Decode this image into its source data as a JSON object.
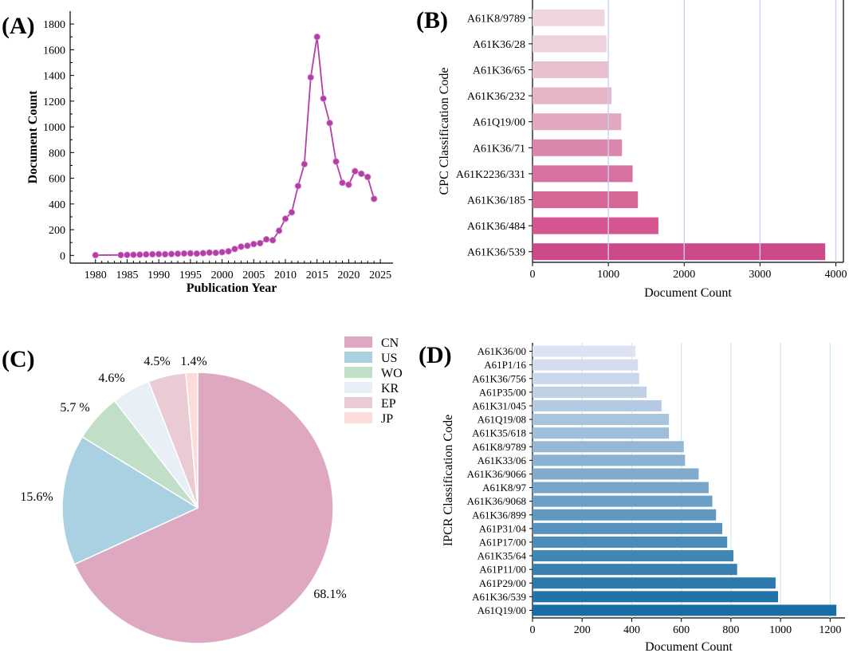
{
  "chart_data": [
    {
      "panel": "(A)",
      "type": "line",
      "xlabel": "Publication Year",
      "ylabel": "Document Count",
      "xlim": [
        1976,
        2027
      ],
      "ylim": [
        -60,
        1900
      ],
      "xticks": [
        1980,
        1985,
        1990,
        1995,
        2000,
        2005,
        2010,
        2015,
        2020,
        2025
      ],
      "yticks": [
        0,
        200,
        400,
        600,
        800,
        1000,
        1200,
        1400,
        1600,
        1800
      ],
      "color": "#b23fa5",
      "x": [
        1980,
        1984,
        1985,
        1986,
        1987,
        1988,
        1989,
        1990,
        1991,
        1992,
        1993,
        1994,
        1995,
        1996,
        1997,
        1998,
        1999,
        2000,
        2001,
        2002,
        2003,
        2004,
        2005,
        2006,
        2007,
        2008,
        2009,
        2010,
        2011,
        2012,
        2013,
        2014,
        2015,
        2016,
        2017,
        2018,
        2019,
        2020,
        2021,
        2022,
        2023,
        2024
      ],
      "y": [
        2,
        3,
        4,
        5,
        6,
        8,
        9,
        10,
        9,
        11,
        13,
        15,
        16,
        14,
        17,
        22,
        20,
        25,
        32,
        50,
        68,
        75,
        88,
        95,
        125,
        118,
        192,
        285,
        335,
        540,
        710,
        1385,
        1700,
        1220,
        1030,
        730,
        565,
        550,
        655,
        635,
        610,
        440
      ]
    },
    {
      "panel": "(B)",
      "type": "bar",
      "orientation": "horizontal",
      "xlabel": "Document Count",
      "ylabel": "CPC Classification Code",
      "xlim": [
        0,
        4100
      ],
      "xticks": [
        0,
        1000,
        2000,
        3000,
        4000
      ],
      "grid": true,
      "categories": [
        "A61K8/9789",
        "A61K36/28",
        "A61K36/65",
        "A61K36/232",
        "A61Q19/00",
        "A61K36/71",
        "A61K2236/331",
        "A61K36/185",
        "A61K36/484",
        "A61K36/539"
      ],
      "values": [
        950,
        975,
        1000,
        1040,
        1170,
        1180,
        1320,
        1390,
        1660,
        3860
      ],
      "colors": [
        "#efd6de",
        "#ecd2dc",
        "#e9c0d0",
        "#e6b3c7",
        "#e2a8c0",
        "#db87ad",
        "#d672a2",
        "#d66696",
        "#d55590",
        "#cc4a8a"
      ]
    },
    {
      "panel": "(C)",
      "type": "pie",
      "labels": [
        "CN",
        "US",
        "WO",
        "KR",
        "EP",
        "JP"
      ],
      "values": [
        68.1,
        15.6,
        5.7,
        4.6,
        4.5,
        1.4
      ],
      "pct_labels": [
        "68.1%",
        "15.6%",
        "5.7 %",
        "4.6%",
        "4.5%",
        "1.4%"
      ],
      "colors": [
        "#dea8c1",
        "#a9d1e1",
        "#c1dec7",
        "#e9eff7",
        "#ebcbd3",
        "#fbdcd9"
      ],
      "legend": "top-right"
    },
    {
      "panel": "(D)",
      "type": "bar",
      "orientation": "horizontal",
      "xlabel": "Document Count",
      "ylabel": "IPCR Classification Code",
      "xlim": [
        0,
        1260
      ],
      "xticks": [
        0,
        200,
        400,
        600,
        800,
        1000,
        1200
      ],
      "grid": true,
      "categories": [
        "A61K36/00",
        "A61P1/16",
        "A61K36/756",
        "A61P35/00",
        "A61K31/045",
        "A61Q19/08",
        "A61K35/618",
        "A61K8/9789",
        "A61K33/06",
        "A61K36/9066",
        "A61K8/97",
        "A61K36/9068",
        "A61K36/899",
        "A61P31/04",
        "A61P17/00",
        "A61K35/64",
        "A61P11/00",
        "A61P29/00",
        "A61K36/539",
        "A61Q19/00"
      ],
      "values": [
        415,
        425,
        430,
        460,
        520,
        550,
        550,
        610,
        615,
        670,
        710,
        725,
        740,
        765,
        785,
        810,
        825,
        980,
        990,
        1225
      ]
    }
  ],
  "panel_labels": {
    "a": "(A)",
    "b": "(B)",
    "c": "(C)",
    "d": "(D)"
  }
}
